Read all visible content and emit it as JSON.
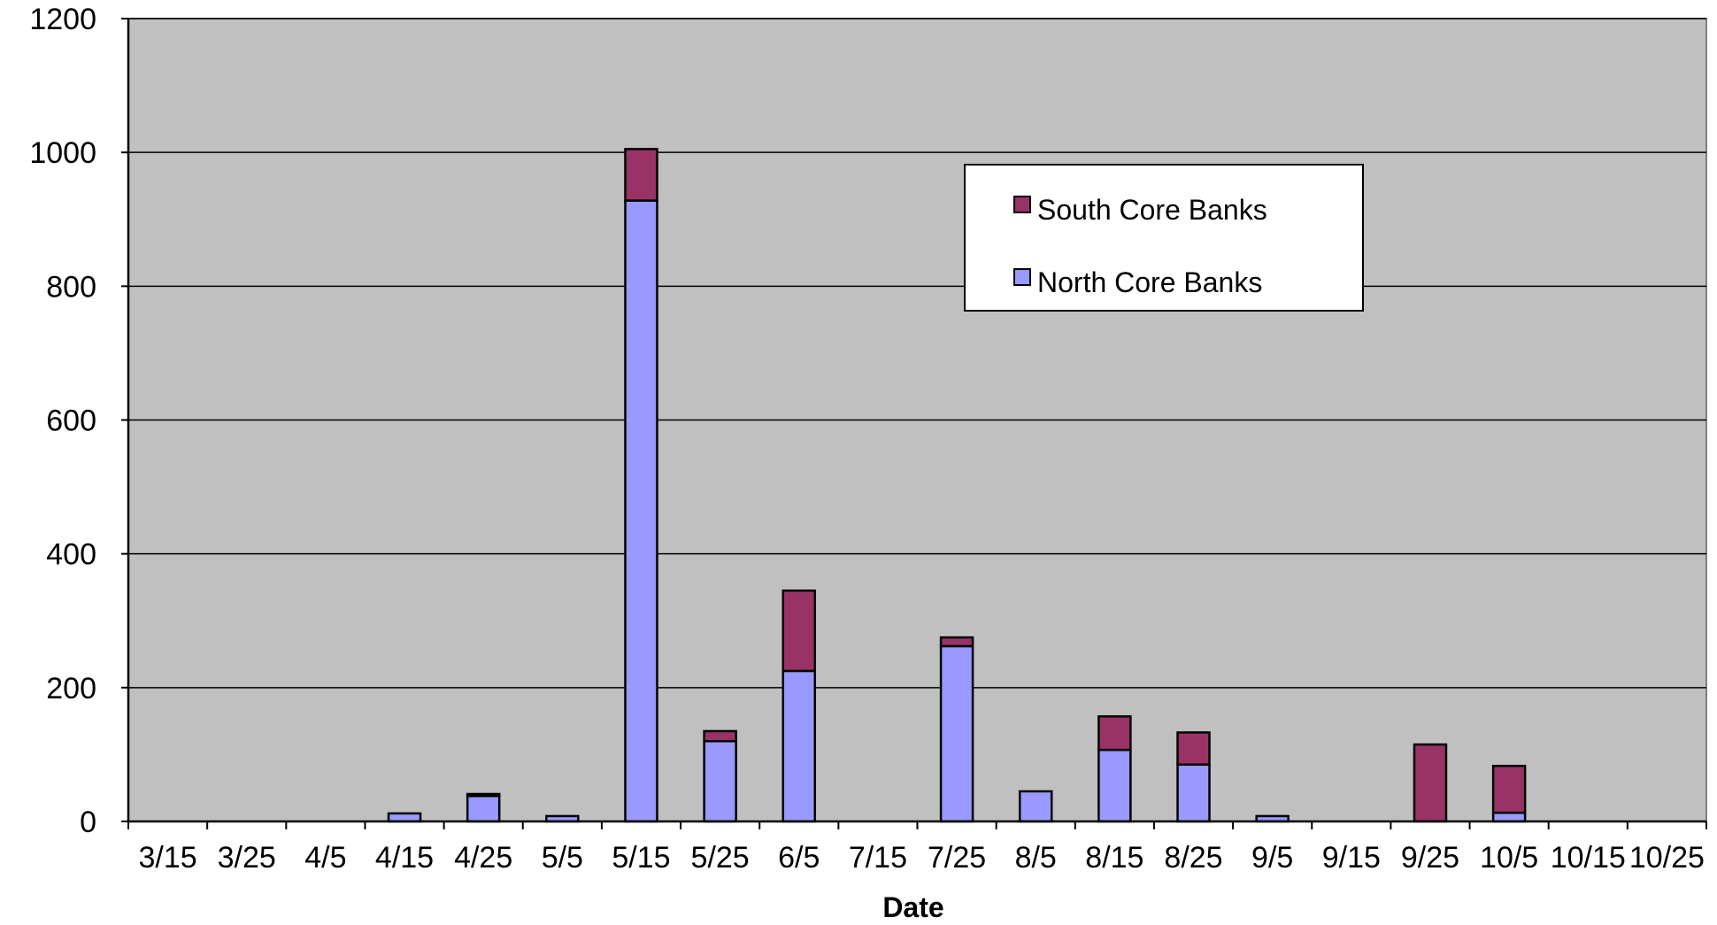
{
  "chart_data": {
    "type": "bar",
    "stacked": true,
    "xlabel": "Date",
    "ylabel": "",
    "ylim": [
      0,
      1200
    ],
    "yticks": [
      0,
      200,
      400,
      600,
      800,
      1000,
      1200
    ],
    "grid": true,
    "legend_position": "top-right",
    "categories": [
      "3/15",
      "3/25",
      "4/5",
      "4/15",
      "4/25",
      "5/5",
      "5/15",
      "5/25",
      "6/5",
      "7/15",
      "7/25",
      "8/5",
      "8/15",
      "8/25",
      "9/5",
      "9/15",
      "9/25",
      "10/5",
      "10/15",
      "10/25"
    ],
    "series": [
      {
        "name": "North Core Banks",
        "color": "#9999ff",
        "values": [
          0,
          0,
          0,
          12,
          38,
          8,
          928,
          120,
          225,
          0,
          262,
          45,
          107,
          85,
          8,
          0,
          0,
          13,
          0,
          0
        ]
      },
      {
        "name": "South Core Banks",
        "color": "#993366",
        "values": [
          0,
          0,
          0,
          0,
          3,
          0,
          77,
          15,
          120,
          0,
          13,
          0,
          50,
          48,
          0,
          0,
          115,
          70,
          0,
          0
        ]
      }
    ],
    "legend": [
      {
        "name": "South Core Banks",
        "color": "#993366"
      },
      {
        "name": "North Core Banks",
        "color": "#9999ff"
      }
    ],
    "colors": {
      "plot_background": "#c0c0c0",
      "gridline": "#000000",
      "bar_outline": "#000000"
    }
  }
}
